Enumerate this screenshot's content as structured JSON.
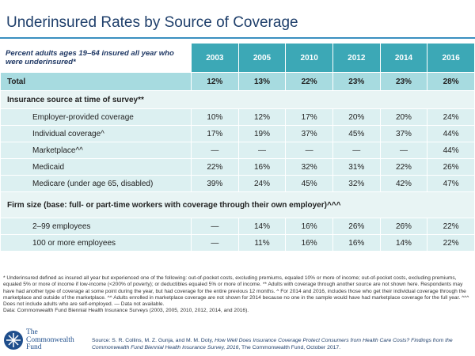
{
  "header": {
    "title": "Underinsured Rates by Source of Coverage"
  },
  "table": {
    "corner": "Percent adults ages 19–64 insured all year who were underinsured*",
    "columns": [
      "2003",
      "2005",
      "2010",
      "2012",
      "2014",
      "2016"
    ],
    "rows": [
      {
        "label": "Total",
        "cells": [
          "12%",
          "13%",
          "22%",
          "23%",
          "23%",
          "28%"
        ]
      },
      {
        "label": "Insurance source at time of survey**"
      },
      {
        "label": "Employer-provided coverage",
        "cells": [
          "10%",
          "12%",
          "17%",
          "20%",
          "20%",
          "24%"
        ]
      },
      {
        "label": "Individual coverage^",
        "cells": [
          "17%",
          "19%",
          "37%",
          "45%",
          "37%",
          "44%"
        ]
      },
      {
        "label": "Marketplace^^",
        "cells": [
          "—",
          "—",
          "—",
          "—",
          "—",
          "44%"
        ]
      },
      {
        "label": "Medicaid",
        "cells": [
          "22%",
          "16%",
          "32%",
          "31%",
          "22%",
          "26%"
        ]
      },
      {
        "label": "Medicare (under age 65, disabled)",
        "cells": [
          "39%",
          "24%",
          "45%",
          "32%",
          "42%",
          "47%"
        ]
      },
      {
        "label": "Firm size (base: full- or part-time workers with coverage through their own employer)^^^"
      },
      {
        "label": "2–99 employees",
        "cells": [
          "—",
          "14%",
          "16%",
          "26%",
          "26%",
          "22%"
        ]
      },
      {
        "label": "100 or more employees",
        "cells": [
          "—",
          "11%",
          "16%",
          "16%",
          "14%",
          "22%"
        ]
      }
    ]
  },
  "footnote": "* Underinsured defined as insured all year but experienced one of the following: out-of-pocket costs, excluding premiums, equaled 10% or more of income; out-of-pocket costs, excluding premiums, equaled 5% or more of income if low-income (<200% of poverty); or deductibles equaled 5% or more of income. ** Adults with coverage through another source are not shown here. Respondents may have had another type of coverage at some point during the year, but had coverage for the entire previous 12 months. ^ For 2014 and 2016, includes those who get their individual coverage through the marketplace and outside of the marketplace. ^^ Adults enrolled in marketplace coverage are not shown for 2014 because no one in the sample would have had marketplace coverage for the full year. ^^^ Does not include adults who are self-employed. — Data not available.",
  "data_note": "Data: Commonwealth Fund Biennial Health Insurance Surveys (2003, 2005, 2010, 2012, 2014, and 2016).",
  "source": {
    "prefix": "Source: S. R. Collins, M. Z. Gunja, and M. M. Doty, ",
    "title": "How Well Does Insurance Coverage Protect Consumers from Health Care Costs? Findings from the Commonwealth Fund Biennial Health Insurance Survey, 2016",
    "suffix": ", The Commonwealth Fund, October 2017."
  },
  "logo": [
    "The",
    "Commonwealth",
    "Fund"
  ]
}
